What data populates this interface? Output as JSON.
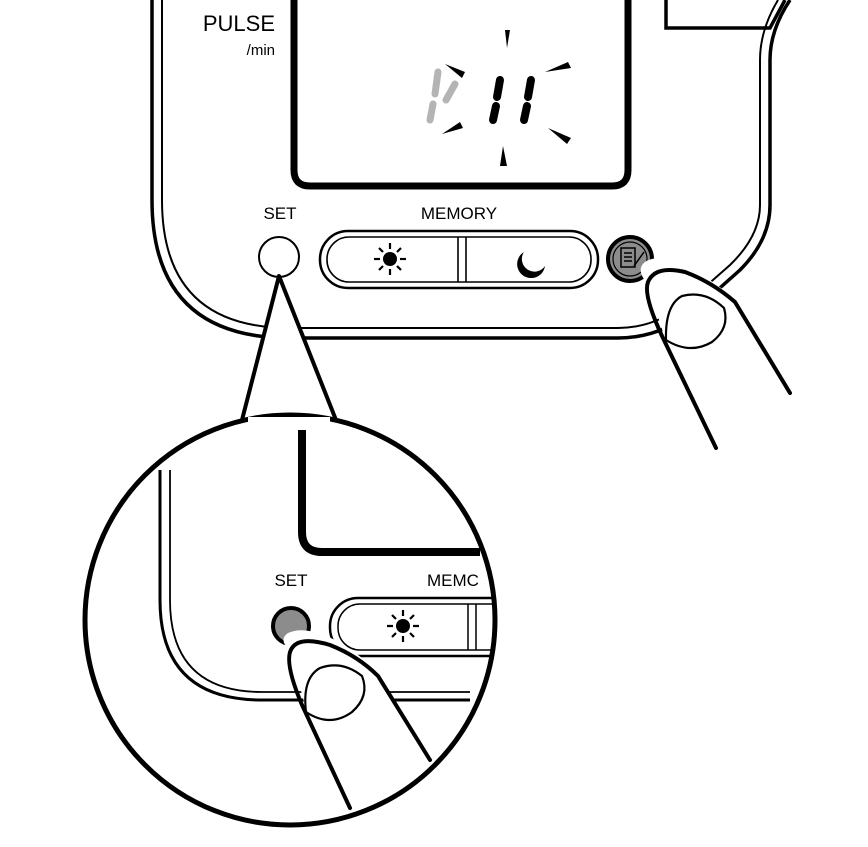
{
  "device": {
    "pulse_label": "PULSE",
    "pulse_unit": "/min",
    "set_label": "SET",
    "memory_label": "MEMORY",
    "display_digits": "11",
    "morning_icon": "sun-icon",
    "evening_icon": "moon-icon",
    "memo_icon": "memo-icon"
  },
  "zoom": {
    "set_label": "SET",
    "memory_label_cropped": "MEMC",
    "morning_icon": "sun-icon"
  },
  "colors": {
    "ink": "#000000",
    "pressed_button": "#8c8c8c",
    "faded_digit": "#b4b4b4",
    "background": "#ffffff"
  }
}
